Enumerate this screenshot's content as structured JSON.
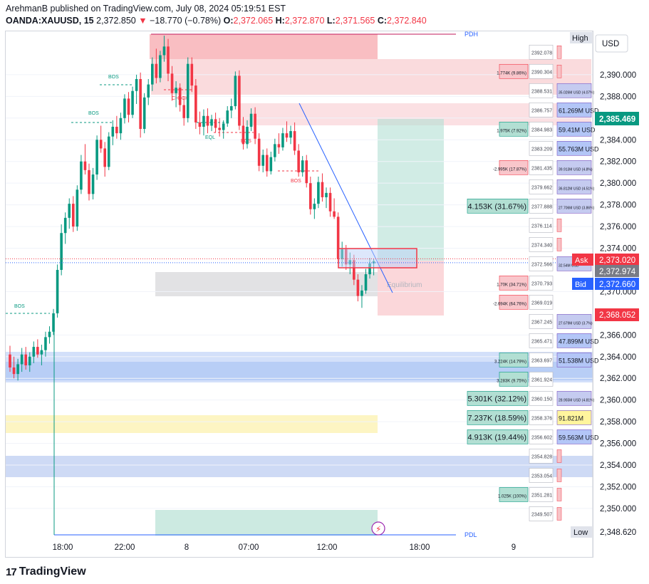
{
  "header": {
    "publisher": "ArehmanB published on TradingView.com, July 08, 2024 05:19:51 EST",
    "symbol": "OANDA:XAUUSD, 15",
    "last": "2,372.850",
    "change": "−18.770 (−0.78%)",
    "o_label": "O:",
    "o": "2,372.065",
    "h_label": "H:",
    "h": "2,372.870",
    "l_label": "L:",
    "l": "2,371.565",
    "c_label": "C:",
    "c": "2,372.840"
  },
  "footer": {
    "brand": "TradingView",
    "logo": "17"
  },
  "currency": "USD",
  "colors": {
    "up": "#089981",
    "down": "#f23645",
    "ask": "#f23645",
    "bid": "#2962ff",
    "last": "#787b86"
  },
  "chart_data": {
    "type": "candlestick",
    "y_axis": {
      "min": 2347.5,
      "max": 2394.0,
      "ticks": [
        "2,350.000",
        "2,352.000",
        "2,354.000",
        "2,356.000",
        "2,358.000",
        "2,360.000",
        "2,362.000",
        "2,364.000",
        "2,366.000",
        "2,370.000",
        "2,374.000",
        "2,376.000",
        "2,378.000",
        "2,380.000",
        "2,382.000",
        "2,384.000",
        "2,386.000",
        "2,388.000",
        "2,390.000"
      ]
    },
    "x_axis": {
      "ticks": [
        "18:00",
        "22:00",
        "8",
        "07:00",
        "12:00",
        "18:00",
        "9"
      ]
    },
    "price_labels": {
      "high_label": "High",
      "high": "2,385.469",
      "ask_label": "Ask",
      "ask": "2,373.020",
      "last": "2,372.974",
      "bid_label": "Bid",
      "bid": "2,372.660",
      "red": "2,368.052",
      "low_label": "Low",
      "low": "2,348.620"
    },
    "markers": {
      "pdh": "PDH",
      "pdl": "PDL"
    },
    "structure_labels": [
      {
        "text": "BOS",
        "price": 2389.6
      },
      {
        "text": "BOS",
        "price": 2385.8
      },
      {
        "text": "CHoCH",
        "price": 2387.4
      },
      {
        "text": "EQL",
        "price": 2383.6
      },
      {
        "text": "BOS",
        "price": 2383.3
      },
      {
        "text": "BOS",
        "price": 2379.9
      },
      {
        "text": "BOS",
        "price": 2368.6
      },
      {
        "text": "Equilibrium",
        "price": 2370.7
      }
    ],
    "volume_profile": [
      {
        "price": "2392.078",
        "left": "",
        "right": ""
      },
      {
        "price": "2390.304",
        "left": "1.774K (9.86%)",
        "right": ""
      },
      {
        "price": "2388.531",
        "left": "",
        "right": "35.026M USD (4.07%)"
      },
      {
        "price": "2386.757",
        "left": "",
        "right": "61.269M USD"
      },
      {
        "price": "2384.983",
        "left": "1.975K (7.92%)",
        "right": "59.41M USD"
      },
      {
        "price": "2383.209",
        "left": "",
        "right": "55.763M USD"
      },
      {
        "price": "2381.435",
        "left": "-2.995K (17.87%)",
        "right": "39.913M USD (4.8%)"
      },
      {
        "price": "2379.662",
        "left": "",
        "right": "36.812M USD (4.51%)"
      },
      {
        "price": "2377.888",
        "left": "4.153K (31.67%)",
        "right": "27.706M USD (3.86%)"
      },
      {
        "price": "2376.114",
        "left": "",
        "right": ""
      },
      {
        "price": "2374.340",
        "left": "",
        "right": ""
      },
      {
        "price": "2372.566",
        "left": "",
        "right": "32.54M USD"
      },
      {
        "price": "2370.793",
        "left": "1.70K (34.71%)",
        "right": ""
      },
      {
        "price": "2369.019",
        "left": "-2.694K (64.76%)",
        "right": ""
      },
      {
        "price": "2367.245",
        "left": "",
        "right": "27.679M USD (3.7%)"
      },
      {
        "price": "2365.471",
        "left": "",
        "right": "47.899M USD"
      },
      {
        "price": "2363.697",
        "left": "3.224K (14.79%)",
        "right": "51.538M USD"
      },
      {
        "price": "2361.924",
        "left": "3.283K (9.75%)",
        "right": ""
      },
      {
        "price": "2360.150",
        "left": "5.301K (32.12%)",
        "right": "28.955M USD (4.81%)"
      },
      {
        "price": "2358.376",
        "left": "7.237K (18.59%)",
        "right": "91.821M"
      },
      {
        "price": "2356.602",
        "left": "4.913K (19.44%)",
        "right": "59.563M USD"
      },
      {
        "price": "2354.828",
        "left": "",
        "right": ""
      },
      {
        "price": "2353.054",
        "left": "",
        "right": ""
      },
      {
        "price": "2351.281",
        "left": "1.025K (100%)",
        "right": ""
      },
      {
        "price": "2349.507",
        "left": "",
        "right": ""
      }
    ],
    "candles": [
      [
        2364.2,
        2365.0,
        2362.6,
        2363.0
      ],
      [
        2363.0,
        2364.0,
        2362.0,
        2362.4
      ],
      [
        2362.4,
        2363.8,
        2361.8,
        2363.3
      ],
      [
        2363.3,
        2364.8,
        2362.6,
        2364.2
      ],
      [
        2364.2,
        2364.9,
        2362.8,
        2363.2
      ],
      [
        2363.2,
        2364.4,
        2362.6,
        2364.0
      ],
      [
        2364.0,
        2365.4,
        2363.4,
        2364.9
      ],
      [
        2364.9,
        2365.6,
        2363.9,
        2364.2
      ],
      [
        2364.2,
        2365.1,
        2363.2,
        2364.6
      ],
      [
        2364.6,
        2366.3,
        2364.0,
        2365.8
      ],
      [
        2365.8,
        2366.8,
        2365.2,
        2366.3
      ],
      [
        2366.3,
        2368.4,
        2366.0,
        2368.0
      ],
      [
        2368.0,
        2372.5,
        2367.6,
        2372.0
      ],
      [
        2372.0,
        2376.2,
        2371.5,
        2375.4
      ],
      [
        2375.4,
        2377.3,
        2374.4,
        2376.8
      ],
      [
        2376.8,
        2378.6,
        2375.8,
        2378.1
      ],
      [
        2378.1,
        2378.8,
        2375.5,
        2376.0
      ],
      [
        2376.0,
        2379.8,
        2375.6,
        2379.4
      ],
      [
        2379.4,
        2382.6,
        2379.0,
        2382.0
      ],
      [
        2382.0,
        2383.6,
        2380.8,
        2381.2
      ],
      [
        2381.2,
        2381.8,
        2378.4,
        2379.0
      ],
      [
        2379.0,
        2381.4,
        2378.5,
        2380.8
      ],
      [
        2380.8,
        2384.4,
        2380.3,
        2384.0
      ],
      [
        2384.0,
        2385.3,
        2382.8,
        2383.2
      ],
      [
        2383.2,
        2383.8,
        2380.6,
        2381.5
      ],
      [
        2381.5,
        2384.7,
        2381.2,
        2384.3
      ],
      [
        2384.3,
        2385.8,
        2383.5,
        2385.2
      ],
      [
        2385.2,
        2386.2,
        2384.1,
        2384.6
      ],
      [
        2384.6,
        2386.5,
        2384.0,
        2386.0
      ],
      [
        2386.0,
        2388.2,
        2385.5,
        2387.8
      ],
      [
        2387.8,
        2388.4,
        2385.6,
        2386.3
      ],
      [
        2386.3,
        2388.9,
        2386.0,
        2388.5
      ],
      [
        2388.5,
        2390.0,
        2387.3,
        2389.6
      ],
      [
        2389.6,
        2390.2,
        2384.2,
        2385.0
      ],
      [
        2385.0,
        2388.3,
        2384.6,
        2387.9
      ],
      [
        2387.9,
        2389.6,
        2387.2,
        2389.1
      ],
      [
        2389.1,
        2391.6,
        2388.5,
        2391.0
      ],
      [
        2391.0,
        2392.4,
        2389.2,
        2389.7
      ],
      [
        2389.7,
        2392.2,
        2389.3,
        2391.8
      ],
      [
        2391.8,
        2393.6,
        2391.2,
        2392.6
      ],
      [
        2392.6,
        2393.3,
        2389.4,
        2390.1
      ],
      [
        2390.1,
        2390.8,
        2387.6,
        2388.3
      ],
      [
        2388.3,
        2389.4,
        2387.0,
        2388.8
      ],
      [
        2388.8,
        2389.2,
        2386.6,
        2387.2
      ],
      [
        2387.2,
        2388.0,
        2385.3,
        2386.0
      ],
      [
        2386.0,
        2391.6,
        2385.6,
        2391.0
      ],
      [
        2391.0,
        2391.6,
        2388.4,
        2389.0
      ],
      [
        2389.0,
        2389.6,
        2385.0,
        2385.6
      ],
      [
        2385.6,
        2386.6,
        2384.5,
        2385.2
      ],
      [
        2385.2,
        2386.8,
        2384.4,
        2386.2
      ],
      [
        2386.2,
        2386.9,
        2384.6,
        2385.3
      ],
      [
        2385.3,
        2386.3,
        2384.8,
        2385.9
      ],
      [
        2385.9,
        2386.5,
        2384.7,
        2385.1
      ],
      [
        2385.1,
        2386.0,
        2384.3,
        2384.9
      ],
      [
        2384.9,
        2385.8,
        2384.1,
        2385.5
      ],
      [
        2385.5,
        2387.1,
        2385.2,
        2386.7
      ],
      [
        2386.7,
        2387.8,
        2386.0,
        2387.1
      ],
      [
        2387.1,
        2390.3,
        2386.8,
        2389.9
      ],
      [
        2389.9,
        2390.4,
        2384.9,
        2385.3
      ],
      [
        2385.3,
        2386.1,
        2383.1,
        2383.6
      ],
      [
        2383.6,
        2385.8,
        2383.2,
        2385.2
      ],
      [
        2385.2,
        2386.9,
        2384.8,
        2386.4
      ],
      [
        2386.4,
        2387.0,
        2383.6,
        2384.1
      ],
      [
        2384.1,
        2384.6,
        2381.1,
        2381.6
      ],
      [
        2381.6,
        2383.1,
        2381.0,
        2382.6
      ],
      [
        2382.6,
        2383.2,
        2380.6,
        2381.1
      ],
      [
        2381.1,
        2382.9,
        2380.8,
        2382.4
      ],
      [
        2382.4,
        2384.1,
        2382.0,
        2383.6
      ],
      [
        2383.6,
        2384.6,
        2382.7,
        2383.3
      ],
      [
        2383.3,
        2385.1,
        2383.0,
        2384.6
      ],
      [
        2384.6,
        2385.7,
        2383.8,
        2384.2
      ],
      [
        2384.2,
        2385.3,
        2383.6,
        2384.8
      ],
      [
        2384.8,
        2385.6,
        2382.6,
        2383.0
      ],
      [
        2383.0,
        2383.6,
        2380.6,
        2381.0
      ],
      [
        2381.0,
        2382.5,
        2380.6,
        2382.1
      ],
      [
        2382.1,
        2382.6,
        2379.6,
        2380.0
      ],
      [
        2380.0,
        2380.6,
        2377.1,
        2377.6
      ],
      [
        2377.6,
        2378.6,
        2376.7,
        2378.1
      ],
      [
        2378.1,
        2380.6,
        2377.7,
        2380.1
      ],
      [
        2380.1,
        2380.9,
        2378.3,
        2378.7
      ],
      [
        2378.7,
        2379.6,
        2377.7,
        2379.1
      ],
      [
        2379.1,
        2379.6,
        2376.9,
        2377.4
      ],
      [
        2377.4,
        2378.6,
        2376.7,
        2376.9
      ],
      [
        2376.9,
        2377.3,
        2372.6,
        2373.0
      ],
      [
        2373.0,
        2374.6,
        2372.3,
        2373.9
      ],
      [
        2373.9,
        2374.3,
        2372.0,
        2372.5
      ],
      [
        2372.5,
        2373.6,
        2371.6,
        2372.9
      ],
      [
        2372.9,
        2373.4,
        2370.6,
        2371.1
      ],
      [
        2371.1,
        2371.6,
        2369.1,
        2369.6
      ],
      [
        2369.6,
        2370.6,
        2368.5,
        2370.1
      ],
      [
        2370.1,
        2372.1,
        2369.8,
        2371.6
      ],
      [
        2371.6,
        2373.1,
        2371.2,
        2372.6
      ],
      [
        2372.6,
        2373.0,
        2371.5,
        2372.8
      ]
    ]
  }
}
